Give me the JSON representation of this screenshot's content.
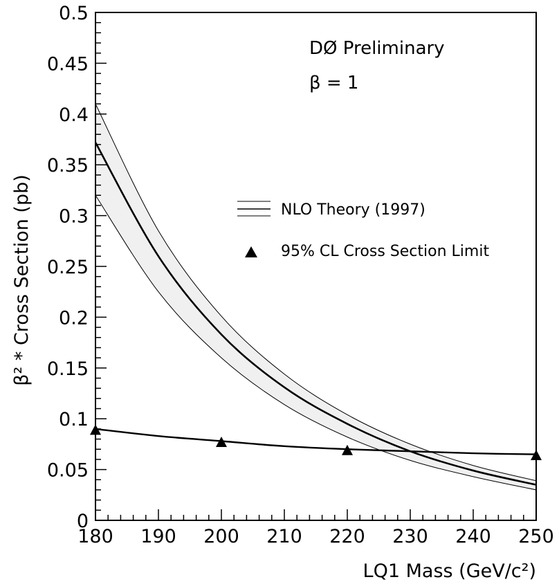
{
  "chart_data": {
    "type": "line",
    "xlabel": "LQ1 Mass (GeV/c²)",
    "ylabel": "β² * Cross Section (pb)",
    "xlim": [
      180,
      250
    ],
    "ylim": [
      0,
      0.5
    ],
    "x_ticks": [
      180,
      190,
      200,
      210,
      220,
      230,
      240,
      250
    ],
    "x_tick_labels": [
      "180",
      "190",
      "200",
      "210",
      "220",
      "230",
      "240",
      "250"
    ],
    "y_ticks": [
      0,
      0.05,
      0.1,
      0.15,
      0.2,
      0.25,
      0.3,
      0.35,
      0.4,
      0.45,
      0.5
    ],
    "y_tick_labels": [
      "0",
      "0.05",
      "0.1",
      "0.15",
      "0.2",
      "0.25",
      "0.3",
      "0.35",
      "0.4",
      "0.45",
      "0.5"
    ],
    "annotations": [
      "DØ Preliminary",
      "β = 1"
    ],
    "legend_position": "right-middle",
    "grid": false,
    "series": [
      {
        "name": "NLO Theory (1997)",
        "kind": "band",
        "x": [
          180,
          190,
          200,
          210,
          220,
          230,
          240,
          250
        ],
        "central": [
          0.372,
          0.26,
          0.183,
          0.131,
          0.095,
          0.068,
          0.049,
          0.035
        ],
        "upper": [
          0.41,
          0.285,
          0.201,
          0.144,
          0.104,
          0.075,
          0.054,
          0.039
        ],
        "lower": [
          0.32,
          0.225,
          0.16,
          0.114,
          0.082,
          0.059,
          0.043,
          0.03
        ]
      },
      {
        "name": "95% CL Cross Section Limit",
        "kind": "markers+fit",
        "x": [
          180,
          200,
          220,
          250
        ],
        "y": [
          0.089,
          0.077,
          0.069,
          0.064
        ],
        "fit_x": [
          180,
          190,
          200,
          210,
          220,
          230,
          240,
          250
        ],
        "fit_y": [
          0.09,
          0.083,
          0.078,
          0.073,
          0.07,
          0.068,
          0.066,
          0.065
        ]
      }
    ]
  },
  "colors": {
    "axis": "#000000",
    "band_fill": "#f0f0f0",
    "line": "#000000"
  }
}
